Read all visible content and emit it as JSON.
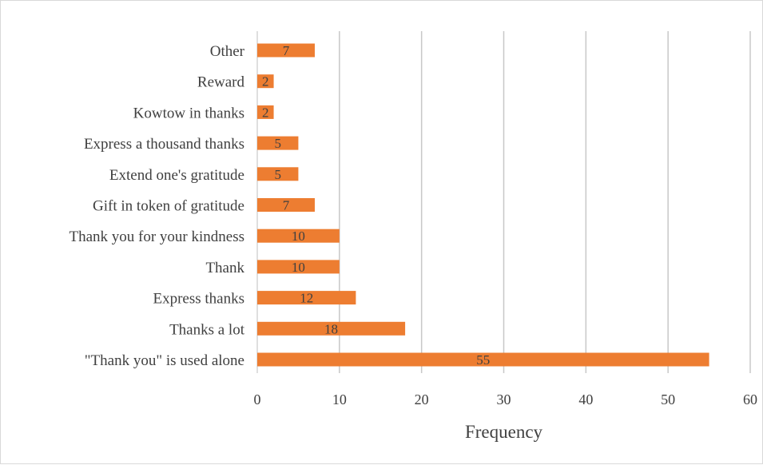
{
  "chart_data": {
    "type": "bar",
    "orientation": "horizontal",
    "categories": [
      "\"Thank you\" is used alone",
      "Thanks a lot",
      "Express thanks",
      "Thank",
      "Thank you for your kindness",
      "Gift in token of gratitude",
      "Extend one's gratitude",
      "Express a thousand thanks",
      "Kowtow in thanks",
      "Reward",
      "Other"
    ],
    "values": [
      55,
      18,
      12,
      10,
      10,
      7,
      5,
      5,
      2,
      2,
      7
    ],
    "data_labels": [
      "55",
      "18",
      "12",
      "10",
      "10",
      "7",
      "5",
      "5",
      "2",
      "2",
      "7"
    ],
    "xlabel": "Frequency",
    "ylabel": "",
    "title": "",
    "xlim": [
      0,
      60
    ],
    "xticks": [
      0,
      10,
      20,
      30,
      40,
      50,
      60
    ],
    "xtick_labels": [
      "0",
      "10",
      "20",
      "30",
      "40",
      "50",
      "60"
    ],
    "grid": "vertical",
    "legend": "none",
    "colors": {
      "bar": "#ED7D31",
      "grid": "#C8C8C8",
      "text": "#404040"
    }
  }
}
